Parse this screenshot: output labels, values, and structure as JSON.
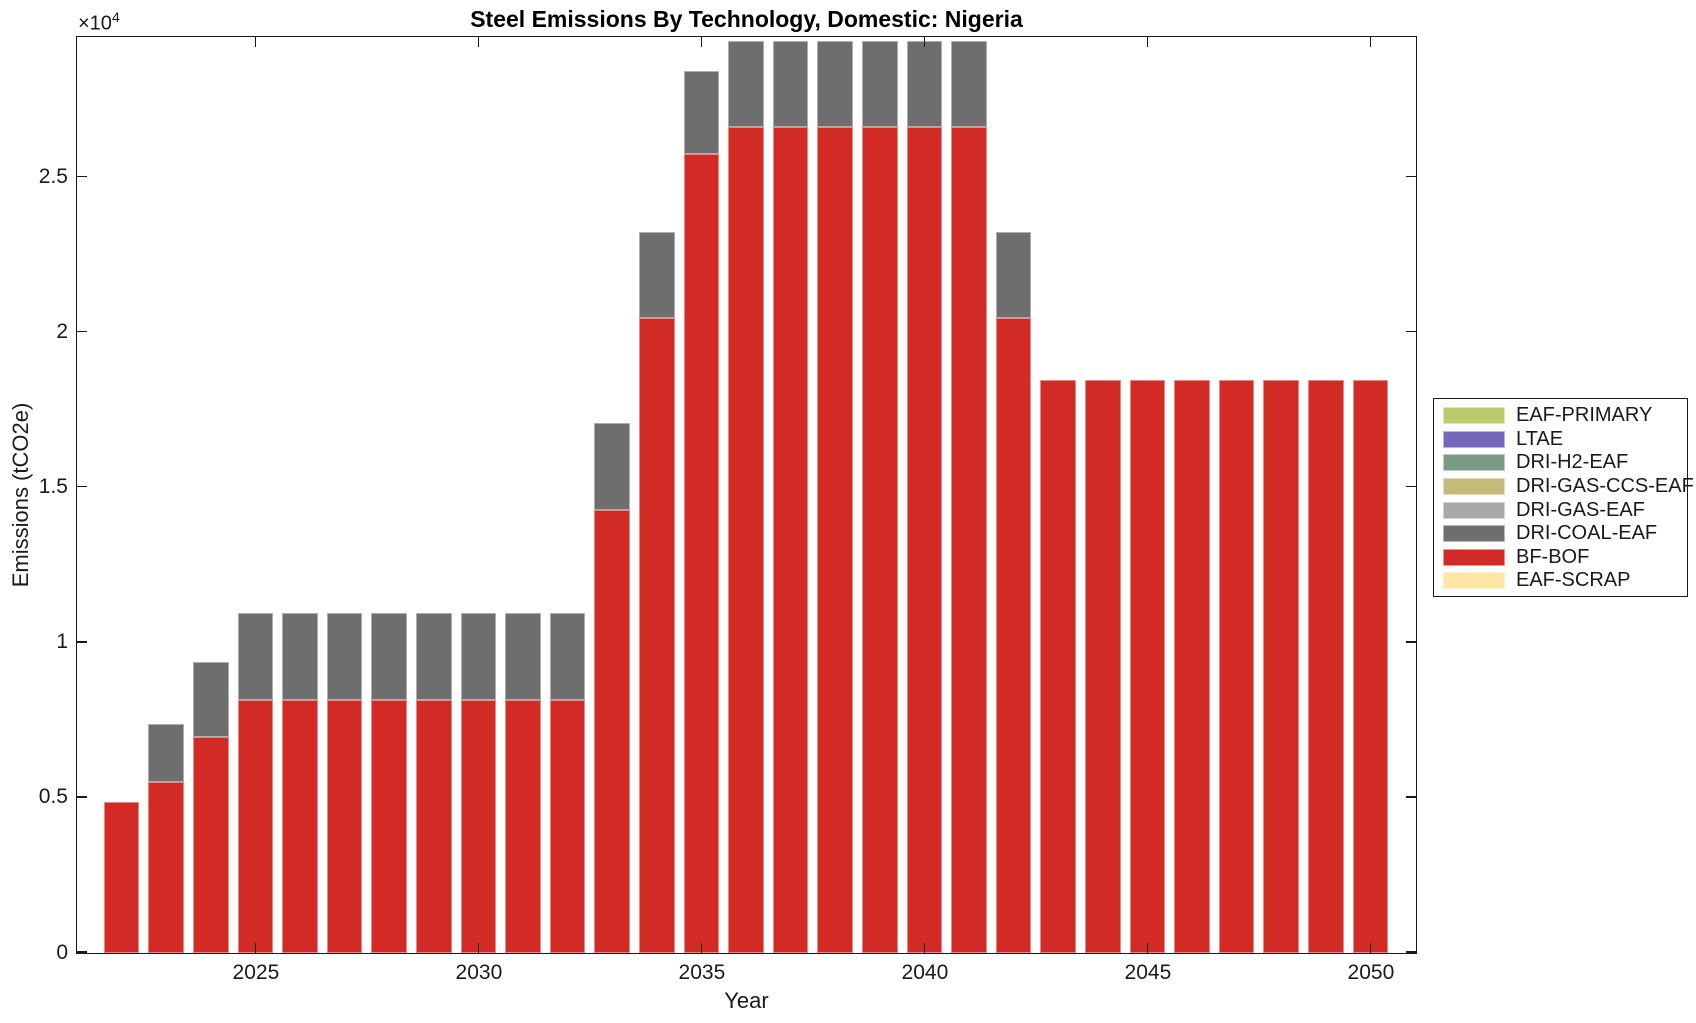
{
  "figure": {
    "background_color": "#ffffff",
    "axis_color": "#1a1a1a"
  },
  "chart_data": {
    "type": "bar",
    "stacked": true,
    "title": "Steel Emissions By Technology, Domestic: Nigeria",
    "xlabel": "Year",
    "ylabel": "Emissions (tCO2e)",
    "y_multiplier_base": "×10",
    "y_multiplier_exp": "4",
    "grid": false,
    "legend_position": "outside-right-middle",
    "xlim": [
      2021,
      2051
    ],
    "ylim": [
      0,
      29500
    ],
    "xticks": [
      2025,
      2030,
      2035,
      2040,
      2045,
      2050
    ],
    "yticks": {
      "values": [
        0,
        5000,
        10000,
        15000,
        20000,
        25000
      ],
      "labels": [
        "0",
        "0.5",
        "1",
        "1.5",
        "2",
        "2.5"
      ]
    },
    "x": [
      2022,
      2023,
      2024,
      2025,
      2026,
      2027,
      2028,
      2029,
      2030,
      2031,
      2032,
      2033,
      2034,
      2035,
      2036,
      2037,
      2038,
      2039,
      2040,
      2041,
      2042,
      2043,
      2044,
      2045,
      2046,
      2047,
      2048,
      2049,
      2050
    ],
    "bar_width_fraction": 0.8,
    "stack_bottom_to_top": [
      "EAF-SCRAP",
      "BF-BOF",
      "DRI-COAL-EAF",
      "DRI-GAS-EAF",
      "DRI-GAS-CCS-EAF",
      "DRI-H2-EAF",
      "LTAE",
      "EAF-PRIMARY"
    ],
    "series": [
      {
        "name": "EAF-PRIMARY",
        "color": "#bcca6e",
        "values": [
          0,
          0,
          0,
          0,
          0,
          0,
          0,
          0,
          0,
          0,
          0,
          0,
          0,
          0,
          0,
          0,
          0,
          0,
          0,
          0,
          0,
          0,
          0,
          0,
          0,
          0,
          0,
          0,
          0
        ]
      },
      {
        "name": "LTAE",
        "color": "#7468bc",
        "values": [
          0,
          0,
          0,
          0,
          0,
          0,
          0,
          0,
          0,
          0,
          0,
          0,
          0,
          0,
          0,
          0,
          0,
          0,
          0,
          0,
          0,
          0,
          0,
          0,
          0,
          0,
          0,
          0,
          0
        ]
      },
      {
        "name": "DRI-H2-EAF",
        "color": "#7a9b84",
        "values": [
          0,
          0,
          0,
          0,
          0,
          0,
          0,
          0,
          0,
          0,
          0,
          0,
          0,
          0,
          0,
          0,
          0,
          0,
          0,
          0,
          0,
          0,
          0,
          0,
          0,
          0,
          0,
          0,
          0
        ]
      },
      {
        "name": "DRI-GAS-CCS-EAF",
        "color": "#c6ba78",
        "values": [
          0,
          0,
          0,
          0,
          0,
          0,
          0,
          0,
          0,
          0,
          0,
          0,
          0,
          0,
          0,
          0,
          0,
          0,
          0,
          0,
          0,
          0,
          0,
          0,
          0,
          0,
          0,
          0,
          0
        ]
      },
      {
        "name": "DRI-GAS-EAF",
        "color": "#a9a9a9",
        "values": [
          0,
          0,
          0,
          0,
          0,
          0,
          0,
          0,
          0,
          0,
          0,
          0,
          0,
          0,
          0,
          0,
          0,
          0,
          0,
          0,
          0,
          0,
          0,
          0,
          0,
          0,
          0,
          0,
          0
        ]
      },
      {
        "name": "DRI-COAL-EAF",
        "color": "#6e6e6e",
        "values": [
          0,
          1900,
          2410,
          2790,
          2790,
          2790,
          2790,
          2790,
          2790,
          2790,
          2790,
          2790,
          2760,
          2700,
          2790,
          2790,
          2790,
          2790,
          2790,
          2790,
          2760,
          0,
          0,
          0,
          0,
          0,
          0,
          0,
          0
        ]
      },
      {
        "name": "BF-BOF",
        "color": "#d22b26",
        "values": [
          4860,
          5500,
          6980,
          8170,
          8170,
          8170,
          8170,
          8170,
          8170,
          8170,
          8170,
          14300,
          20490,
          25750,
          26620,
          26620,
          26620,
          26620,
          26620,
          26620,
          20490,
          18470,
          18470,
          18470,
          18470,
          18470,
          18470,
          18470,
          18470
        ]
      },
      {
        "name": "EAF-SCRAP",
        "color": "#fde7a2",
        "values": [
          0,
          0,
          0,
          0,
          0,
          0,
          0,
          0,
          0,
          0,
          0,
          0,
          0,
          0,
          0,
          0,
          0,
          0,
          0,
          0,
          0,
          0,
          0,
          0,
          0,
          0,
          0,
          0,
          0
        ]
      }
    ]
  }
}
